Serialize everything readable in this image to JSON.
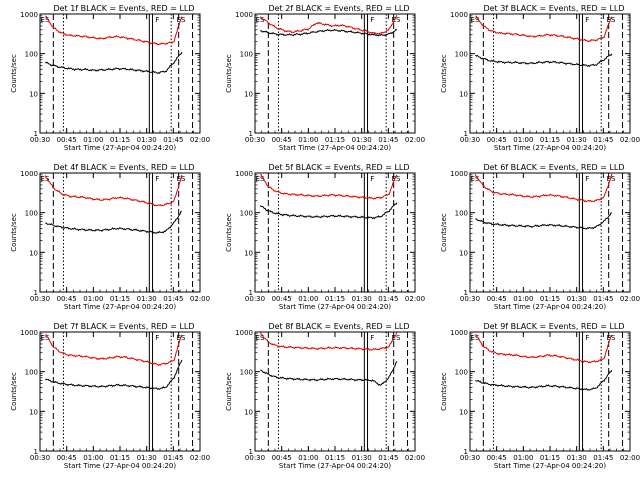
{
  "chart_data": [
    {
      "type": "line",
      "title": "Det 1f BLACK = Events, RED = LLD",
      "xlabel": "Start Time (27-Apr-04 00:24:20)",
      "ylabel": "Counts/sec",
      "x_ticks": [
        "00:30",
        "00:45",
        "01:00",
        "01:15",
        "01:30",
        "01:45",
        "02:00"
      ],
      "y_ticks": [
        "1",
        "10",
        "100",
        "1000"
      ],
      "ylim": [
        1,
        1000
      ],
      "y_scale": "log",
      "flags": [
        "ES",
        "F",
        "ES"
      ],
      "series": [
        {
          "color": "#e00000",
          "values": [
            900,
            450,
            330,
            290,
            280,
            270,
            250,
            240,
            260,
            270,
            250,
            230,
            210,
            190,
            175,
            180,
            200,
            900
          ]
        },
        {
          "color": "#000000",
          "values": [
            60,
            50,
            45,
            42,
            40,
            40,
            38,
            39,
            40,
            42,
            41,
            39,
            37,
            35,
            33,
            36,
            60,
            110
          ]
        }
      ]
    },
    {
      "type": "line",
      "title": "Det 2f BLACK = Events, RED = LLD",
      "xlabel": "Start Time (27-Apr-04 00:24:20)",
      "ylabel": "Counts/sec",
      "x_ticks": [
        "00:30",
        "00:45",
        "01:00",
        "01:15",
        "01:30",
        "01:45",
        "02:00"
      ],
      "y_ticks": [
        "1",
        "10",
        "100",
        "1000"
      ],
      "ylim": [
        1,
        1000
      ],
      "y_scale": "log",
      "flags": [
        "ES",
        "F",
        "ES"
      ],
      "series": [
        {
          "color": "#e00000",
          "values": [
            850,
            600,
            450,
            380,
            350,
            380,
            420,
            600,
            550,
            500,
            520,
            480,
            420,
            380,
            330,
            320,
            400,
            900
          ]
        },
        {
          "color": "#000000",
          "values": [
            380,
            340,
            310,
            300,
            300,
            310,
            330,
            360,
            380,
            390,
            380,
            360,
            340,
            320,
            300,
            290,
            310,
            400
          ]
        }
      ]
    },
    {
      "type": "line",
      "title": "Det 3f BLACK = Events, RED = LLD",
      "xlabel": "Start Time (27-Apr-04 00:24:20)",
      "ylabel": "Counts/sec",
      "x_ticks": [
        "00:30",
        "00:45",
        "01:00",
        "01:15",
        "01:30",
        "01:45",
        "02:00"
      ],
      "y_ticks": [
        "1",
        "10",
        "100",
        "1000"
      ],
      "ylim": [
        1,
        1000
      ],
      "y_scale": "log",
      "flags": [
        "ES",
        "F",
        "ES"
      ],
      "series": [
        {
          "color": "#e00000",
          "values": [
            900,
            500,
            370,
            330,
            320,
            310,
            290,
            270,
            280,
            300,
            290,
            270,
            250,
            230,
            210,
            220,
            260,
            900
          ]
        },
        {
          "color": "#000000",
          "values": [
            90,
            75,
            65,
            62,
            60,
            60,
            58,
            57,
            60,
            62,
            61,
            58,
            55,
            52,
            50,
            52,
            70,
            100
          ]
        }
      ]
    },
    {
      "type": "line",
      "title": "Det 4f BLACK = Events, RED = LLD",
      "xlabel": "Start Time (27-Apr-04 00:24:20)",
      "ylabel": "Counts/sec",
      "x_ticks": [
        "00:30",
        "00:45",
        "01:00",
        "01:15",
        "01:30",
        "01:45",
        "02:00"
      ],
      "y_ticks": [
        "1",
        "10",
        "100",
        "1000"
      ],
      "ylim": [
        1,
        1000
      ],
      "y_scale": "log",
      "flags": [
        "ES",
        "F",
        "ES"
      ],
      "series": [
        {
          "color": "#e00000",
          "values": [
            850,
            420,
            300,
            260,
            250,
            240,
            220,
            210,
            220,
            240,
            230,
            210,
            190,
            170,
            150,
            160,
            190,
            850
          ]
        },
        {
          "color": "#000000",
          "values": [
            55,
            48,
            43,
            40,
            38,
            37,
            36,
            36,
            38,
            40,
            39,
            37,
            35,
            33,
            31,
            34,
            55,
            110
          ]
        }
      ]
    },
    {
      "type": "line",
      "title": "Det 5f BLACK = Events, RED = LLD",
      "xlabel": "Start Time (27-Apr-04 00:24:20)",
      "ylabel": "Counts/sec",
      "x_ticks": [
        "00:30",
        "00:45",
        "01:00",
        "01:15",
        "01:30",
        "01:45",
        "02:00"
      ],
      "y_ticks": [
        "1",
        "10",
        "100",
        "1000"
      ],
      "ylim": [
        1,
        1000
      ],
      "y_scale": "log",
      "flags": [
        "ES",
        "F",
        "ES"
      ],
      "series": [
        {
          "color": "#e00000",
          "values": [
            950,
            450,
            340,
            300,
            290,
            280,
            270,
            260,
            270,
            280,
            270,
            260,
            250,
            240,
            230,
            240,
            290,
            950
          ]
        },
        {
          "color": "#000000",
          "values": [
            150,
            110,
            95,
            88,
            84,
            82,
            80,
            78,
            80,
            83,
            82,
            80,
            78,
            76,
            74,
            80,
            110,
            180
          ]
        }
      ]
    },
    {
      "type": "line",
      "title": "Det 6f BLACK = Events, RED = LLD",
      "xlabel": "Start Time (27-Apr-04 00:24:20)",
      "ylabel": "Counts/sec",
      "x_ticks": [
        "00:30",
        "00:45",
        "01:00",
        "01:15",
        "01:30",
        "01:45",
        "02:00"
      ],
      "y_ticks": [
        "1",
        "10",
        "100",
        "1000"
      ],
      "ylim": [
        1,
        1000
      ],
      "y_scale": "log",
      "flags": [
        "ES",
        "F",
        "ES"
      ],
      "series": [
        {
          "color": "#e00000",
          "values": [
            900,
            470,
            340,
            300,
            290,
            280,
            260,
            250,
            260,
            280,
            270,
            250,
            230,
            210,
            195,
            200,
            240,
            900
          ]
        },
        {
          "color": "#000000",
          "values": [
            70,
            58,
            52,
            50,
            48,
            47,
            46,
            45,
            47,
            49,
            48,
            46,
            44,
            42,
            40,
            43,
            60,
            100
          ]
        }
      ]
    },
    {
      "type": "line",
      "title": "Det 7f BLACK = Events, RED = LLD",
      "xlabel": "Start Time (27-Apr-04 00:24:20)",
      "ylabel": "Counts/sec",
      "x_ticks": [
        "00:30",
        "00:45",
        "01:00",
        "01:15",
        "01:30",
        "01:45",
        "02:00"
      ],
      "y_ticks": [
        "1",
        "10",
        "100",
        "1000"
      ],
      "ylim": [
        1,
        1000
      ],
      "y_scale": "log",
      "flags": [
        "ES",
        "F",
        "ES"
      ],
      "series": [
        {
          "color": "#e00000",
          "values": [
            900,
            420,
            300,
            260,
            250,
            240,
            220,
            210,
            220,
            240,
            230,
            210,
            190,
            170,
            150,
            160,
            190,
            900
          ]
        },
        {
          "color": "#000000",
          "values": [
            65,
            55,
            50,
            47,
            45,
            44,
            43,
            42,
            44,
            46,
            45,
            43,
            41,
            39,
            37,
            40,
            70,
            200
          ]
        }
      ]
    },
    {
      "type": "line",
      "title": "Det 8f BLACK = Events, RED = LLD",
      "xlabel": "Start Time (27-Apr-04 00:24:20)",
      "ylabel": "Counts/sec",
      "x_ticks": [
        "00:30",
        "00:45",
        "01:00",
        "01:15",
        "01:30",
        "01:45",
        "02:00"
      ],
      "y_ticks": [
        "1",
        "10",
        "100",
        "1000"
      ],
      "ylim": [
        1,
        1000
      ],
      "y_scale": "log",
      "flags": [
        "ES",
        "F",
        "ES"
      ],
      "series": [
        {
          "color": "#e00000",
          "values": [
            950,
            550,
            450,
            420,
            410,
            400,
            390,
            380,
            390,
            400,
            400,
            390,
            380,
            370,
            360,
            380,
            420,
            950
          ]
        },
        {
          "color": "#000000",
          "values": [
            110,
            85,
            72,
            68,
            66,
            64,
            63,
            62,
            64,
            66,
            65,
            64,
            62,
            62,
            60,
            45,
            70,
            180
          ]
        }
      ]
    },
    {
      "type": "line",
      "title": "Det 9f BLACK = Events, RED = LLD",
      "xlabel": "Start Time (27-Apr-04 00:24:20)",
      "ylabel": "Counts/sec",
      "x_ticks": [
        "00:30",
        "00:45",
        "01:00",
        "01:15",
        "01:30",
        "01:45",
        "02:00"
      ],
      "y_ticks": [
        "1",
        "10",
        "100",
        "1000"
      ],
      "ylim": [
        1,
        1000
      ],
      "y_scale": "log",
      "flags": [
        "ES",
        "F",
        "ES"
      ],
      "series": [
        {
          "color": "#e00000",
          "values": [
            900,
            430,
            320,
            280,
            270,
            260,
            240,
            230,
            240,
            260,
            250,
            230,
            210,
            190,
            175,
            180,
            210,
            900
          ]
        },
        {
          "color": "#000000",
          "values": [
            60,
            52,
            47,
            45,
            43,
            42,
            41,
            40,
            42,
            44,
            43,
            41,
            39,
            37,
            35,
            38,
            60,
            110
          ]
        }
      ]
    }
  ]
}
